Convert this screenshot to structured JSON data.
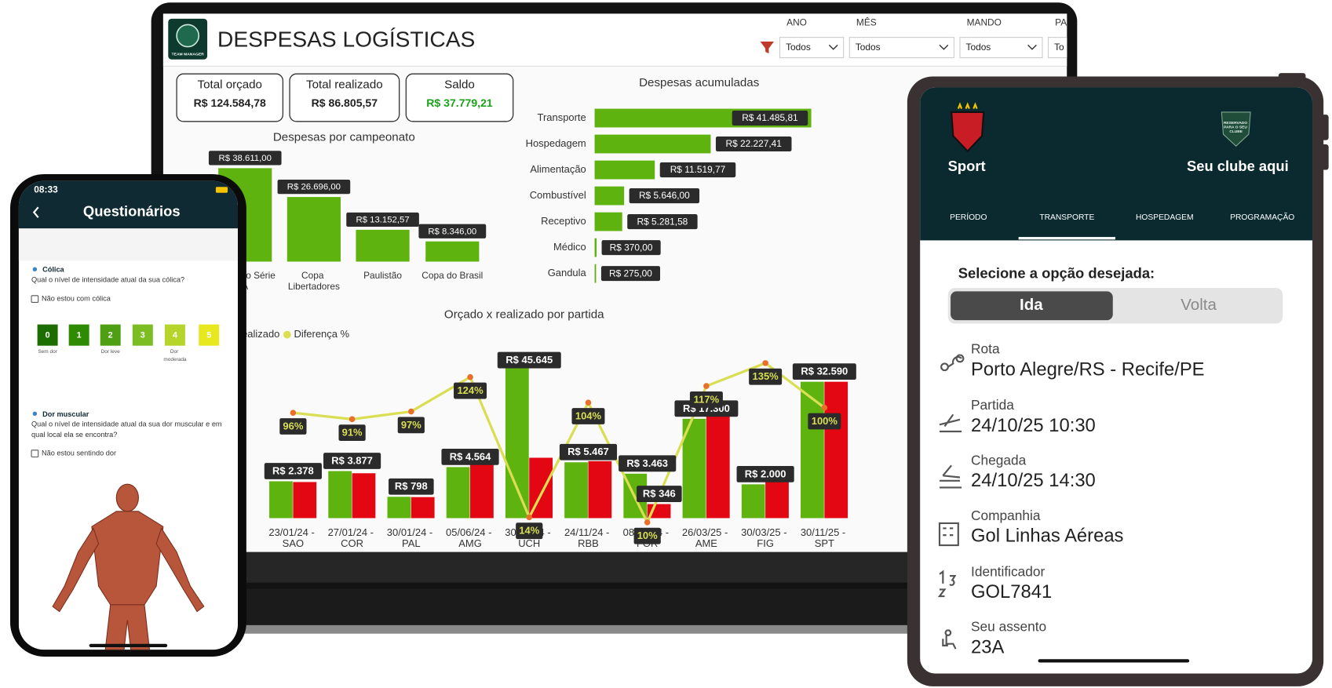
{
  "laptop": {
    "logo_text": "TEAM MANAGER",
    "title": "DESPESAS LOGÍSTICAS",
    "filters": [
      {
        "label": "ANO",
        "value": "Todos"
      },
      {
        "label": "MÊS",
        "value": "Todos"
      },
      {
        "label": "MANDO",
        "value": "Todos"
      },
      {
        "label": "PAR",
        "value": "To"
      }
    ],
    "kpis": [
      {
        "label": "Total orçado",
        "value": "R$ 124.584,78"
      },
      {
        "label": "Total realizado",
        "value": "R$ 86.805,57"
      },
      {
        "label": "Saldo",
        "value": "R$ 37.779,21"
      }
    ],
    "championship_chart": {
      "type": "bar",
      "title": "Despesas por campeonato",
      "categories": [
        "Brasileiro Série A",
        "Copa Libertadores",
        "Paulistão",
        "Copa do Brasil"
      ],
      "values": [
        38611,
        26696,
        13152.57,
        8346
      ],
      "value_labels": [
        "R$ 38.611,00",
        "R$ 26.696,00",
        "R$ 13.152,57",
        "R$ 8.346,00"
      ],
      "color": "#5fb30f"
    },
    "accumulated_chart": {
      "type": "bar",
      "orientation": "horizontal",
      "title": "Despesas acumuladas",
      "categories": [
        "Transporte",
        "Hospedagem",
        "Alimentação",
        "Combustível",
        "Receptivo",
        "Médico",
        "Gandula"
      ],
      "values": [
        41485.81,
        22227.41,
        11519.77,
        5646.0,
        5281.58,
        370.0,
        275.0
      ],
      "value_labels": [
        "R$ 41.485,81",
        "R$ 22.227,41",
        "R$ 11.519,77",
        "R$ 5.646,00",
        "R$ 5.281,58",
        "R$ 370,00",
        "R$ 275,00"
      ],
      "color": "#5fb30f"
    },
    "match_chart": {
      "type": "combo",
      "title": "Orçado x realizado por partida",
      "categories": [
        "23/01/24 - SAO",
        "27/01/24 - COR",
        "30/01/24 - PAL",
        "05/06/24 - AMG",
        "30/09/24 - UCH",
        "24/11/24 - RBB",
        "08/12/24 - FOR",
        "26/03/25 - AME",
        "30/03/25 - FIG",
        "30/11/25 - SPT"
      ],
      "series": [
        {
          "name": "Orçado",
          "color": "#5fb30f",
          "values": [
            2378,
            3877,
            798,
            4564,
            45645,
            5467,
            3463,
            17300,
            2000,
            32590
          ],
          "value_labels": [
            "R$ 2.378",
            "R$ 3.877",
            "R$ 798",
            "R$ 4.564",
            "R$ 45.645",
            "R$ 5.467",
            "R$ 3.463",
            "R$ 17.300",
            "R$ 2.000",
            "R$ 32.590"
          ]
        },
        {
          "name": "Realizado",
          "color": "#e30613",
          "values": [
            2283,
            3528,
            774,
            5659,
            6390,
            5686,
            346,
            20241,
            2700,
            32590
          ],
          "value_labels": [
            null,
            null,
            null,
            null,
            null,
            null,
            "R$ 346",
            null,
            null,
            null
          ]
        },
        {
          "name": "Diferença %",
          "color": "#d9de52",
          "values": [
            96,
            91,
            97,
            124,
            14,
            104,
            10,
            117,
            135,
            100
          ],
          "value_labels": [
            "96%",
            "91%",
            "97%",
            "124%",
            "14%",
            "104%",
            "10%",
            "117%",
            "135%",
            "100%"
          ]
        }
      ]
    }
  },
  "phone": {
    "time": "08:33",
    "title": "Questionários",
    "sections": [
      {
        "title": "Cólica",
        "question": "Qual o nível de intensidade atual da sua cólica?",
        "checkbox": "Não estou com cólica"
      },
      {
        "title": "Dor muscular",
        "question": "Qual o nível de intensidade atual da sua dor muscular e em qual local ela se encontra?",
        "checkbox": "Não estou sentindo dor"
      }
    ],
    "pain_scale": [
      {
        "value": 0,
        "label": "Sem dor",
        "color": "#1d6e00"
      },
      {
        "value": 1,
        "color": "#2e8a00"
      },
      {
        "value": 2,
        "label": "Dor leve",
        "color": "#4f9f12"
      },
      {
        "value": 3,
        "color": "#7cbd22"
      },
      {
        "value": 4,
        "label": "Dor moderada",
        "color": "#b5d52b"
      },
      {
        "value": 5,
        "color": "#e8e81e"
      }
    ]
  },
  "tablet": {
    "club": "Sport",
    "placeholder_badge": "RESERVADO PARA O SEU CLUBE",
    "placeholder_club": "Seu clube aqui",
    "tabs": [
      "PERÍODO",
      "TRANSPORTE",
      "HOSPEDAGEM",
      "PROGRAMAÇÃO"
    ],
    "prompt": "Selecione a opção desejada:",
    "options": [
      "Ida",
      "Volta"
    ],
    "fields": [
      {
        "label": "Rota",
        "value": "Porto Alegre/RS - Recife/PE"
      },
      {
        "label": "Partida",
        "value": "24/10/25 10:30"
      },
      {
        "label": "Chegada",
        "value": "24/10/25 14:30"
      },
      {
        "label": "Companhia",
        "value": "Gol Linhas Aéreas"
      },
      {
        "label": "Identificador",
        "value": "GOL7841"
      },
      {
        "label": "Seu assento",
        "value": "23A"
      }
    ]
  }
}
